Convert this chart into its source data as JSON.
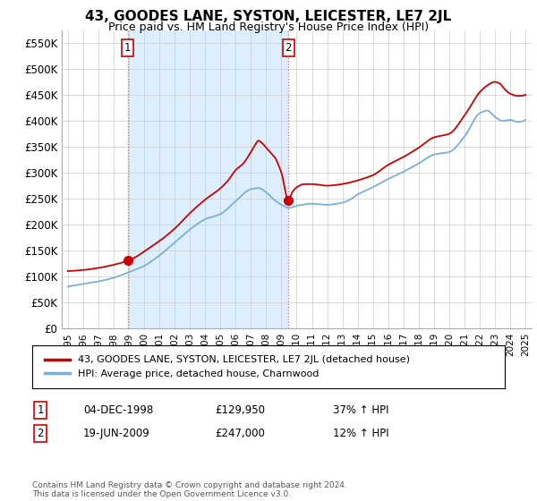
{
  "title": "43, GOODES LANE, SYSTON, LEICESTER, LE7 2JL",
  "subtitle": "Price paid vs. HM Land Registry's House Price Index (HPI)",
  "sale1_date": "04-DEC-1998",
  "sale1_price": 129950,
  "sale1_label": "37% ↑ HPI",
  "sale2_date": "19-JUN-2009",
  "sale2_price": 247000,
  "sale2_label": "12% ↑ HPI",
  "legend_house": "43, GOODES LANE, SYSTON, LEICESTER, LE7 2JL (detached house)",
  "legend_hpi": "HPI: Average price, detached house, Charnwood",
  "footer": "Contains HM Land Registry data © Crown copyright and database right 2024.\nThis data is licensed under the Open Government Licence v3.0.",
  "house_color": "#cc0000",
  "hpi_color": "#7ab0d4",
  "shade_color": "#ddeeff",
  "vline_color": "#cc6666",
  "ylim": [
    0,
    575000
  ],
  "yticks": [
    0,
    50000,
    100000,
    150000,
    200000,
    250000,
    300000,
    350000,
    400000,
    450000,
    500000,
    550000
  ],
  "ytick_labels": [
    "£0",
    "£50K",
    "£100K",
    "£150K",
    "£200K",
    "£250K",
    "£300K",
    "£350K",
    "£400K",
    "£450K",
    "£500K",
    "£550K"
  ]
}
